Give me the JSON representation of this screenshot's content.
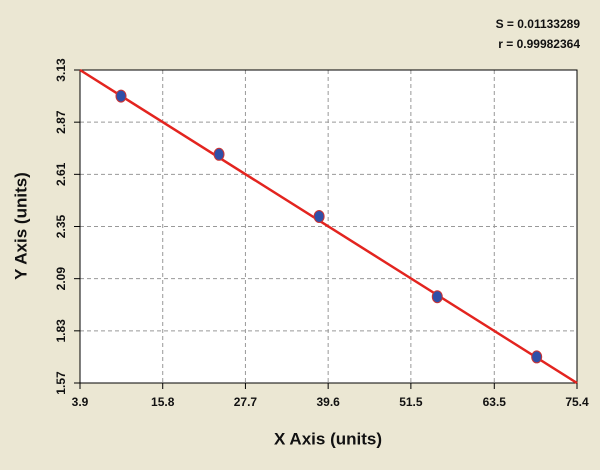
{
  "chart_data": {
    "type": "scatter",
    "annotations": [
      "S = 0.01133289",
      "r = 0.99982364"
    ],
    "x_label": "X Axis (units)",
    "y_label": "Y Axis (units)",
    "series": [
      {
        "kind": "points",
        "color": "#2f4fa8",
        "x": [
          9.8,
          23.9,
          38.3,
          55.3,
          69.6
        ],
        "values": [
          3.0,
          2.71,
          2.4,
          2.0,
          1.7
        ]
      },
      {
        "kind": "line",
        "color": "#e3241f",
        "x": [
          3.9,
          75.4
        ],
        "values": [
          3.13,
          1.57
        ]
      }
    ],
    "xlim": [
      3.9,
      75.4
    ],
    "xticks": [
      3.9,
      15.8,
      27.7,
      39.6,
      51.5,
      63.5,
      75.4
    ],
    "ylim": [
      1.57,
      3.13
    ],
    "yticks": [
      1.57,
      1.83,
      2.09,
      2.35,
      2.61,
      2.87,
      3.13
    ],
    "grid": true
  }
}
